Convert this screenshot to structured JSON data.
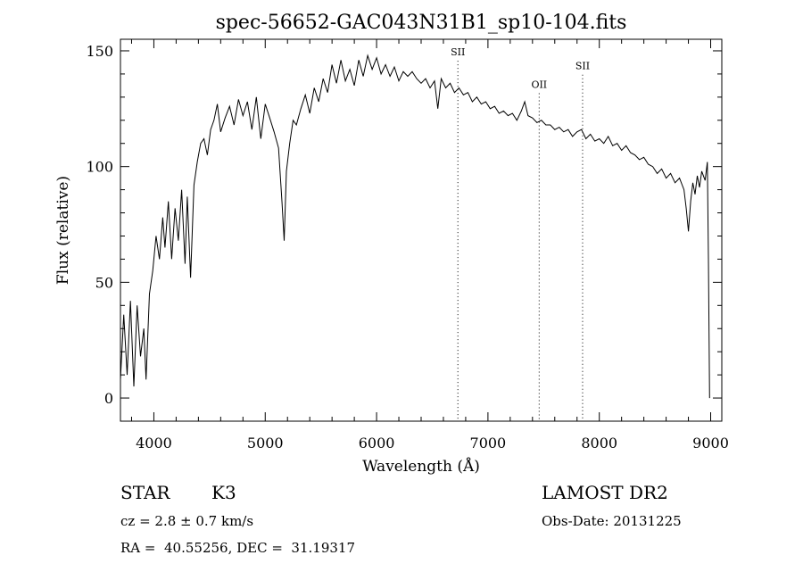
{
  "chart_data": {
    "type": "line",
    "title": "spec-56652-GAC043N31B1_sp10-104.fits",
    "xlabel": "Wavelength (Å)",
    "ylabel": "Flux (relative)",
    "xlim": [
      3700,
      9100
    ],
    "ylim": [
      -10,
      155
    ],
    "xticks": [
      4000,
      5000,
      6000,
      7000,
      8000,
      9000
    ],
    "yticks": [
      0,
      50,
      100,
      150
    ],
    "grid": false,
    "legend": "none",
    "series": [
      {
        "points": [
          [
            3700,
            8
          ],
          [
            3730,
            36
          ],
          [
            3760,
            10
          ],
          [
            3790,
            42
          ],
          [
            3820,
            5
          ],
          [
            3850,
            40
          ],
          [
            3880,
            18
          ],
          [
            3910,
            30
          ],
          [
            3930,
            8
          ],
          [
            3960,
            45
          ],
          [
            3990,
            55
          ],
          [
            4020,
            70
          ],
          [
            4050,
            60
          ],
          [
            4080,
            78
          ],
          [
            4100,
            65
          ],
          [
            4130,
            85
          ],
          [
            4160,
            60
          ],
          [
            4190,
            82
          ],
          [
            4220,
            68
          ],
          [
            4250,
            90
          ],
          [
            4280,
            58
          ],
          [
            4300,
            87
          ],
          [
            4330,
            52
          ],
          [
            4360,
            92
          ],
          [
            4390,
            102
          ],
          [
            4420,
            110
          ],
          [
            4450,
            112
          ],
          [
            4480,
            105
          ],
          [
            4510,
            116
          ],
          [
            4540,
            120
          ],
          [
            4570,
            127
          ],
          [
            4600,
            115
          ],
          [
            4640,
            121
          ],
          [
            4680,
            126
          ],
          [
            4720,
            118
          ],
          [
            4760,
            129
          ],
          [
            4800,
            122
          ],
          [
            4840,
            128
          ],
          [
            4880,
            116
          ],
          [
            4920,
            130
          ],
          [
            4960,
            112
          ],
          [
            5000,
            127
          ],
          [
            5040,
            121
          ],
          [
            5080,
            115
          ],
          [
            5120,
            108
          ],
          [
            5150,
            85
          ],
          [
            5170,
            68
          ],
          [
            5190,
            98
          ],
          [
            5220,
            110
          ],
          [
            5250,
            120
          ],
          [
            5280,
            118
          ],
          [
            5320,
            125
          ],
          [
            5360,
            131
          ],
          [
            5400,
            123
          ],
          [
            5440,
            134
          ],
          [
            5480,
            128
          ],
          [
            5520,
            138
          ],
          [
            5560,
            132
          ],
          [
            5600,
            144
          ],
          [
            5640,
            136
          ],
          [
            5680,
            146
          ],
          [
            5720,
            137
          ],
          [
            5760,
            142
          ],
          [
            5800,
            135
          ],
          [
            5840,
            146
          ],
          [
            5880,
            139
          ],
          [
            5920,
            148
          ],
          [
            5960,
            142
          ],
          [
            6000,
            147
          ],
          [
            6040,
            140
          ],
          [
            6080,
            144
          ],
          [
            6120,
            139
          ],
          [
            6160,
            143
          ],
          [
            6200,
            137
          ],
          [
            6240,
            141
          ],
          [
            6280,
            139
          ],
          [
            6320,
            141
          ],
          [
            6360,
            138
          ],
          [
            6400,
            136
          ],
          [
            6440,
            138
          ],
          [
            6480,
            134
          ],
          [
            6520,
            137
          ],
          [
            6550,
            125
          ],
          [
            6580,
            138
          ],
          [
            6620,
            134
          ],
          [
            6660,
            136
          ],
          [
            6700,
            132
          ],
          [
            6740,
            134
          ],
          [
            6780,
            131
          ],
          [
            6820,
            132
          ],
          [
            6860,
            128
          ],
          [
            6900,
            130
          ],
          [
            6940,
            127
          ],
          [
            6980,
            128
          ],
          [
            7020,
            125
          ],
          [
            7060,
            126
          ],
          [
            7100,
            123
          ],
          [
            7140,
            124
          ],
          [
            7180,
            122
          ],
          [
            7220,
            123
          ],
          [
            7260,
            120
          ],
          [
            7300,
            124
          ],
          [
            7330,
            128
          ],
          [
            7360,
            122
          ],
          [
            7400,
            121
          ],
          [
            7440,
            119
          ],
          [
            7480,
            120
          ],
          [
            7520,
            118
          ],
          [
            7560,
            118
          ],
          [
            7600,
            116
          ],
          [
            7640,
            117
          ],
          [
            7680,
            115
          ],
          [
            7720,
            116
          ],
          [
            7760,
            113
          ],
          [
            7800,
            115
          ],
          [
            7840,
            116
          ],
          [
            7880,
            112
          ],
          [
            7920,
            114
          ],
          [
            7960,
            111
          ],
          [
            8000,
            112
          ],
          [
            8040,
            110
          ],
          [
            8080,
            113
          ],
          [
            8120,
            109
          ],
          [
            8160,
            110
          ],
          [
            8200,
            107
          ],
          [
            8240,
            109
          ],
          [
            8280,
            106
          ],
          [
            8320,
            105
          ],
          [
            8360,
            103
          ],
          [
            8400,
            104
          ],
          [
            8440,
            101
          ],
          [
            8480,
            100
          ],
          [
            8520,
            97
          ],
          [
            8560,
            99
          ],
          [
            8600,
            95
          ],
          [
            8640,
            97
          ],
          [
            8680,
            93
          ],
          [
            8720,
            95
          ],
          [
            8760,
            90
          ],
          [
            8780,
            82
          ],
          [
            8800,
            72
          ],
          [
            8820,
            85
          ],
          [
            8840,
            93
          ],
          [
            8860,
            88
          ],
          [
            8880,
            96
          ],
          [
            8900,
            91
          ],
          [
            8920,
            98
          ],
          [
            8950,
            94
          ],
          [
            8970,
            102
          ],
          [
            8980,
            60
          ],
          [
            8990,
            0
          ]
        ]
      }
    ],
    "annotations": [
      {
        "label": "SII",
        "x": 6730,
        "y": 148
      },
      {
        "label": "OII",
        "x": 7460,
        "y": 134
      },
      {
        "label": "SII",
        "x": 7850,
        "y": 142
      }
    ]
  },
  "info": {
    "class": "STAR",
    "subclass": "K3",
    "survey": "LAMOST DR2",
    "cz": "cz = 2.8 ± 0.7 km/s",
    "obs_date": "Obs-Date: 20131225",
    "coords": "RA =  40.55256, DEC =  31.19317"
  }
}
